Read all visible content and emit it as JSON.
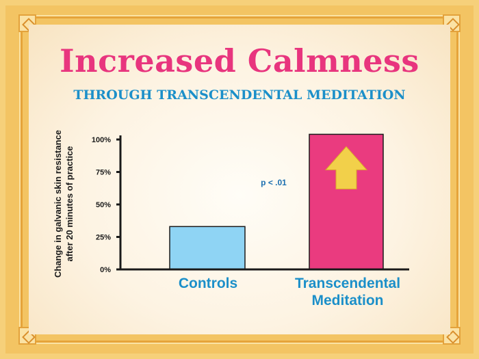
{
  "header": {
    "title": "Increased Calmness",
    "subtitle": "THROUGH TRANSCENDENTAL MEDITATION"
  },
  "colors": {
    "title": "#e8357e",
    "subtitle": "#1b8fc9",
    "controls_bar": "#8fd4f4",
    "tm_bar": "#ea3b7f",
    "arrow": "#f2d04a"
  },
  "chart_data": {
    "type": "bar",
    "title": "Increased Calmness",
    "subtitle": "THROUGH TRANSCENDENTAL MEDITATION",
    "ylabel_lines": [
      "Change in galvanic skin resistance",
      "after 20 minutes of practice"
    ],
    "xlabel": "",
    "categories": [
      {
        "lines": [
          "Controls"
        ]
      },
      {
        "lines": [
          "Transcendental",
          "Meditation"
        ]
      }
    ],
    "values": [
      33,
      104
    ],
    "ylim": [
      0,
      100
    ],
    "yticks": [
      {
        "value": 0,
        "label": "0%"
      },
      {
        "value": 25,
        "label": "25%"
      },
      {
        "value": 50,
        "label": "50%"
      },
      {
        "value": 75,
        "label": "75%"
      },
      {
        "value": 100,
        "label": "100%"
      }
    ],
    "annotation": "p < .01",
    "grid": false,
    "legend": "none"
  }
}
